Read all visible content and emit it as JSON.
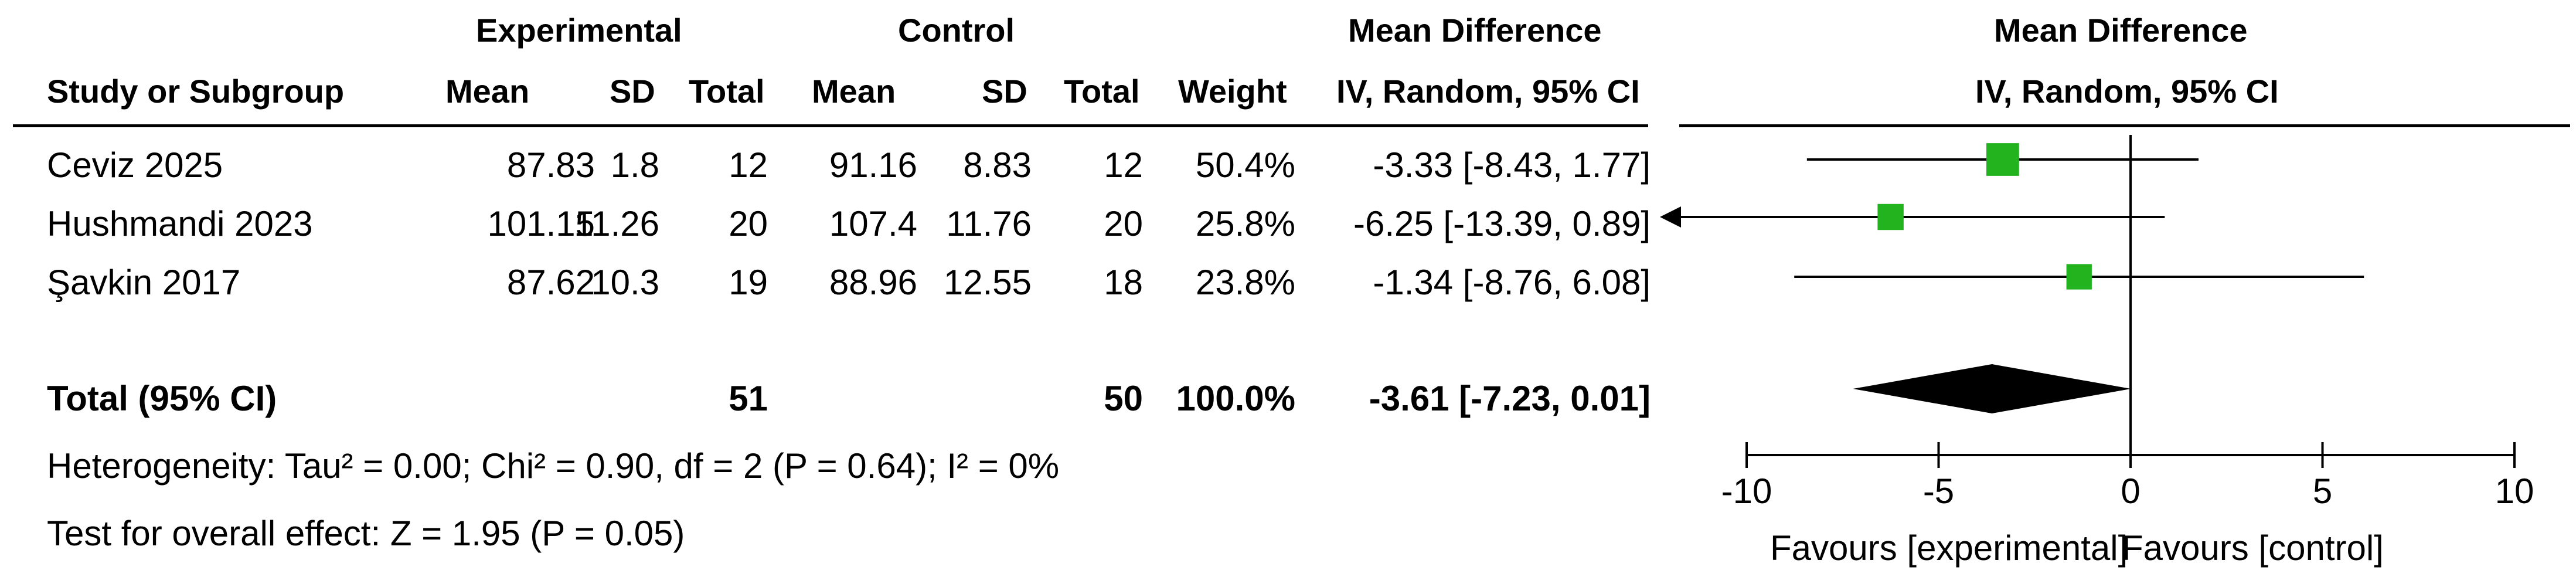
{
  "headers": {
    "experimental": "Experimental",
    "control": "Control",
    "md_top": "Mean Difference",
    "md_sub": "IV, Random, 95% CI",
    "plot_top": "Mean Difference",
    "plot_sub": "IV, Random, 95% CI",
    "study": "Study or Subgroup",
    "mean_e": "Mean",
    "sd_e": "SD",
    "total_e": "Total",
    "mean_c": "Mean",
    "sd_c": "SD",
    "total_c": "Total",
    "weight": "Weight"
  },
  "studies": [
    {
      "name": "Ceviz 2025",
      "mean_e": "87.83",
      "sd_e": "1.8",
      "total_e": "12",
      "mean_c": "91.16",
      "sd_c": "8.83",
      "total_c": "12",
      "weight": "50.4%",
      "ci_text": "-3.33 [-8.43, 1.77]"
    },
    {
      "name": "Hushmandi 2023",
      "mean_e": "101.15",
      "sd_e": "11.26",
      "total_e": "20",
      "mean_c": "107.4",
      "sd_c": "11.76",
      "total_c": "20",
      "weight": "25.8%",
      "ci_text": "-6.25 [-13.39, 0.89]"
    },
    {
      "name": "Şavkin 2017",
      "mean_e": "87.62",
      "sd_e": "10.3",
      "total_e": "19",
      "mean_c": "88.96",
      "sd_c": "12.55",
      "total_c": "18",
      "weight": "23.8%",
      "ci_text": "-1.34 [-8.76, 6.08]"
    }
  ],
  "total": {
    "label": "Total (95% CI)",
    "total_e": "51",
    "total_c": "50",
    "weight": "100.0%",
    "ci_text": "-3.61 [-7.23, 0.01]"
  },
  "heterogeneity": "Heterogeneity: Tau² = 0.00; Chi² = 0.90, df = 2 (P = 0.64); I² = 0%",
  "overall_effect": "Test for overall effect: Z = 1.95 (P = 0.05)",
  "axis": {
    "favours_left": "Favours [experimental]",
    "favours_right": "Favours [control]"
  },
  "colors": {
    "square": "#22b31f",
    "diamond": "#000000",
    "line": "#000000"
  },
  "chart_data": {
    "type": "forest",
    "xlim": [
      -10,
      10
    ],
    "ticks": [
      -10,
      -5,
      0,
      5,
      10
    ],
    "tick_labels": [
      "-10",
      "-5",
      "0",
      "5",
      "10"
    ],
    "studies": [
      {
        "name": "Ceviz 2025",
        "md": -3.33,
        "lo": -8.43,
        "hi": 1.77,
        "weight": 50.4
      },
      {
        "name": "Hushmandi 2023",
        "md": -6.25,
        "lo": -13.39,
        "hi": 0.89,
        "weight": 25.8
      },
      {
        "name": "Şavkin 2017",
        "md": -1.34,
        "lo": -8.76,
        "hi": 6.08,
        "weight": 23.8
      }
    ],
    "pooled": {
      "md": -3.61,
      "lo": -7.23,
      "hi": 0.01
    }
  }
}
